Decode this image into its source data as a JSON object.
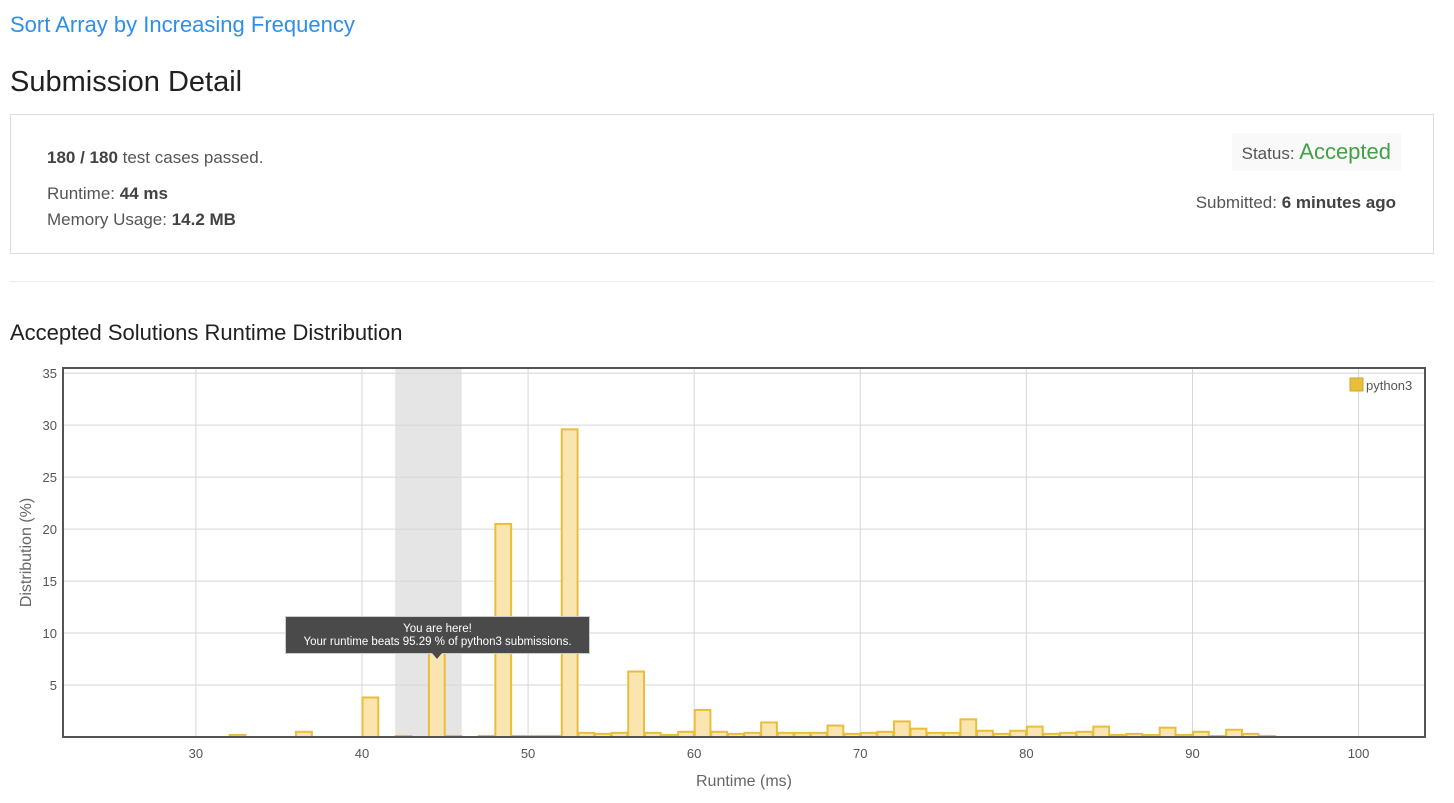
{
  "problem": {
    "title": "Sort Array by Increasing Frequency"
  },
  "page_title": "Submission Detail",
  "detail": {
    "passed_count": "180 / 180",
    "passed_suffix": " test cases passed.",
    "runtime_label": "Runtime: ",
    "runtime_value": "44 ms",
    "memory_label": "Memory Usage: ",
    "memory_value": "14.2 MB",
    "status_label": "Status: ",
    "status_value": "Accepted",
    "submitted_label": "Submitted: ",
    "submitted_value": "6 minutes ago"
  },
  "colors": {
    "link": "#2e8fe8",
    "accepted": "#43a047",
    "bar_fill": "#fae5b0",
    "bar_stroke": "#e8be3a",
    "highlight": "#e5e5e5",
    "tooltip_bg": "#4a4a4a"
  },
  "chart_title": "Accepted Solutions Runtime Distribution",
  "tooltip": {
    "line1": "You are here!",
    "line2": "Your runtime beats 95.29 % of python3 submissions."
  },
  "chart_data": {
    "type": "bar",
    "xlabel": "Runtime (ms)",
    "ylabel": "Distribution (%)",
    "xlim": [
      22,
      104
    ],
    "ylim": [
      0,
      35.5
    ],
    "xticks": [
      30,
      40,
      50,
      60,
      70,
      80,
      90,
      100
    ],
    "yticks": [
      5,
      10,
      15,
      20,
      25,
      30,
      35
    ],
    "grid": true,
    "legend_position": "top-right",
    "highlight_range": [
      42,
      46
    ],
    "series": [
      {
        "name": "python3",
        "points": [
          [
            32,
            0.2
          ],
          [
            36,
            0.5
          ],
          [
            40,
            3.8
          ],
          [
            42,
            0.1
          ],
          [
            44,
            8.6
          ],
          [
            45,
            0.1
          ],
          [
            47,
            0.1
          ],
          [
            48,
            20.5
          ],
          [
            49,
            0.1
          ],
          [
            50,
            0.1
          ],
          [
            51,
            0.1
          ],
          [
            52,
            29.6
          ],
          [
            53,
            0.4
          ],
          [
            54,
            0.3
          ],
          [
            55,
            0.4
          ],
          [
            56,
            6.3
          ],
          [
            57,
            0.4
          ],
          [
            58,
            0.2
          ],
          [
            59,
            0.5
          ],
          [
            60,
            2.6
          ],
          [
            61,
            0.5
          ],
          [
            62,
            0.3
          ],
          [
            63,
            0.4
          ],
          [
            64,
            1.4
          ],
          [
            65,
            0.4
          ],
          [
            66,
            0.4
          ],
          [
            67,
            0.4
          ],
          [
            68,
            1.1
          ],
          [
            69,
            0.3
          ],
          [
            70,
            0.4
          ],
          [
            71,
            0.5
          ],
          [
            72,
            1.5
          ],
          [
            73,
            0.8
          ],
          [
            74,
            0.4
          ],
          [
            75,
            0.4
          ],
          [
            76,
            1.7
          ],
          [
            77,
            0.6
          ],
          [
            78,
            0.3
          ],
          [
            79,
            0.6
          ],
          [
            80,
            1.0
          ],
          [
            81,
            0.3
          ],
          [
            82,
            0.4
          ],
          [
            83,
            0.5
          ],
          [
            84,
            1.0
          ],
          [
            85,
            0.2
          ],
          [
            86,
            0.3
          ],
          [
            87,
            0.2
          ],
          [
            88,
            0.9
          ],
          [
            89,
            0.2
          ],
          [
            90,
            0.5
          ],
          [
            91,
            0.1
          ],
          [
            92,
            0.7
          ],
          [
            93,
            0.3
          ],
          [
            94,
            0.1
          ]
        ]
      }
    ]
  }
}
